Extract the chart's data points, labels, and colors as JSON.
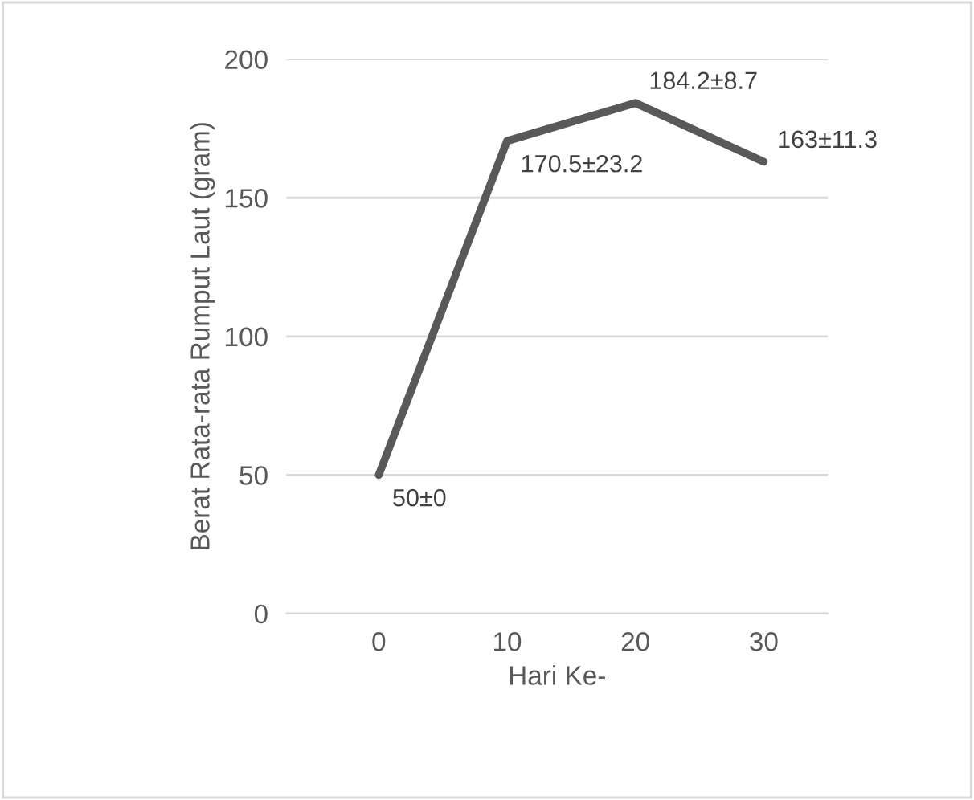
{
  "chart_data": {
    "type": "line",
    "xlabel": "Hari Ke-",
    "ylabel": "Berat Rata-rata Rumput Laut (gram)",
    "categories": [
      "0",
      "10",
      "20",
      "30"
    ],
    "series": [
      {
        "color": "#595959",
        "values": [
          50,
          170.5,
          184.2,
          163
        ],
        "value_labels": [
          "50±0",
          "170.5±23.2",
          "184.2±8.7",
          "163±11.3"
        ]
      }
    ],
    "ylim": [
      0,
      200
    ],
    "yticks": [
      0,
      50,
      100,
      150,
      200
    ],
    "grid": "y",
    "marker": "none",
    "line_style": "solid"
  }
}
